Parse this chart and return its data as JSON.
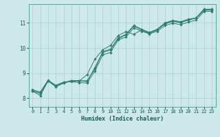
{
  "xlabel": "Humidex (Indice chaleur)",
  "ylabel": "",
  "xlim": [
    -0.5,
    23.5
  ],
  "ylim": [
    7.65,
    11.75
  ],
  "background_color": "#cce8e8",
  "line_color": "#2e7d6e",
  "grid_color": "#aacfcf",
  "xticks": [
    0,
    1,
    2,
    3,
    4,
    5,
    6,
    7,
    8,
    9,
    10,
    11,
    12,
    13,
    14,
    15,
    16,
    17,
    18,
    19,
    20,
    21,
    22,
    23
  ],
  "yticks": [
    8,
    9,
    10,
    11
  ],
  "lines": [
    [
      8.28,
      8.1,
      8.68,
      8.45,
      8.6,
      8.68,
      8.68,
      8.7,
      9.15,
      9.85,
      9.95,
      10.4,
      10.55,
      10.9,
      10.75,
      10.62,
      10.75,
      11.0,
      11.1,
      11.05,
      11.15,
      11.2,
      11.55,
      11.55
    ],
    [
      8.28,
      8.18,
      8.68,
      8.48,
      8.62,
      8.68,
      8.68,
      8.93,
      9.55,
      9.92,
      10.1,
      10.5,
      10.65,
      10.55,
      10.72,
      10.58,
      10.72,
      10.97,
      11.08,
      11.02,
      11.12,
      11.2,
      11.52,
      11.52
    ],
    [
      8.32,
      8.22,
      8.7,
      8.5,
      8.63,
      8.7,
      8.7,
      8.65,
      9.22,
      9.82,
      9.92,
      10.37,
      10.52,
      10.87,
      10.72,
      10.6,
      10.73,
      10.96,
      11.06,
      11.01,
      11.11,
      11.19,
      11.51,
      11.51
    ],
    [
      8.33,
      8.24,
      8.71,
      8.51,
      8.64,
      8.65,
      8.62,
      8.6,
      9.07,
      9.72,
      9.82,
      10.32,
      10.44,
      10.8,
      10.67,
      10.56,
      10.67,
      10.89,
      10.99,
      10.93,
      11.03,
      11.11,
      11.46,
      11.46
    ]
  ]
}
